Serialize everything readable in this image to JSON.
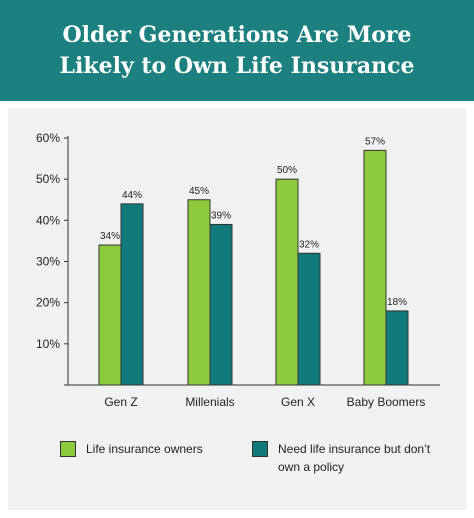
{
  "header": {
    "title": "Older Generations Are More Likely to Own Life Insurance"
  },
  "colors": {
    "header_bg": "#1c7f80",
    "panel_bg": "#f1f1f1",
    "series_owners": "#8dcb3c",
    "series_need": "#137a7c"
  },
  "chart_data": {
    "type": "bar",
    "categories": [
      "Gen Z",
      "Millenials",
      "Gen X",
      "Baby Boomers"
    ],
    "series": [
      {
        "name": "Life insurance owners",
        "values": [
          34,
          45,
          50,
          57
        ],
        "labels": [
          "34%",
          "45%",
          "50%",
          "57%"
        ],
        "color": "#8dcb3c"
      },
      {
        "name": "Need life insurance but don’t own a policy",
        "values": [
          44,
          39,
          32,
          18
        ],
        "labels": [
          "44%",
          "39%",
          "32%",
          "18%"
        ],
        "color": "#137a7c"
      }
    ],
    "yticks": [
      "",
      "10%",
      "20%",
      "30%",
      "40%",
      "50%",
      "60%"
    ],
    "ylim": [
      0,
      60
    ],
    "grid": false,
    "legend_position": "bottom"
  },
  "legend": {
    "owners_label": "Life insurance owners",
    "need_label": "Need life insurance but don’t own a policy"
  }
}
